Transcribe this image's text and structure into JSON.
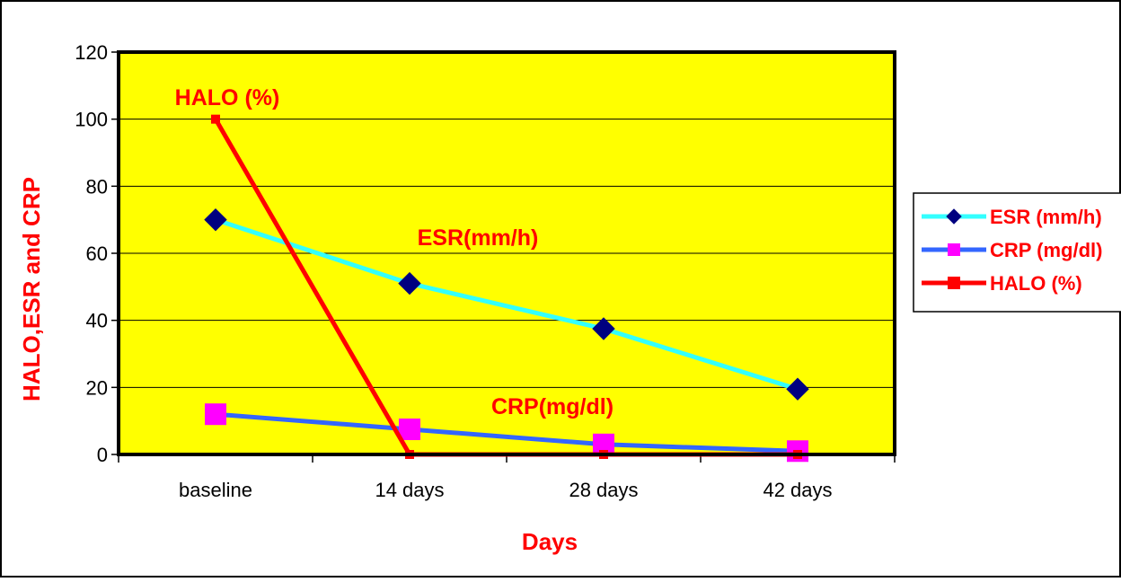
{
  "chart_data": {
    "type": "line",
    "title": "",
    "xlabel": "Days",
    "ylabel": "HALO,ESR and CRP",
    "categories": [
      "baseline",
      "14 days",
      "28 days",
      "42 days"
    ],
    "ylim": [
      0,
      120
    ],
    "yticks": [
      0,
      20,
      40,
      60,
      80,
      100,
      120
    ],
    "grid": true,
    "legend_position": "right",
    "plot_background": "#FFFF00",
    "series": [
      {
        "name": "ESR (mm/h)",
        "values": [
          70,
          51,
          37.5,
          19.5
        ],
        "line_color": "#33FFFF",
        "marker": "diamond",
        "marker_color": "#000080"
      },
      {
        "name": "CRP (mg/dl)",
        "values": [
          12,
          7.5,
          3,
          1
        ],
        "line_color": "#3366FF",
        "marker": "square",
        "marker_color": "#FF00FF"
      },
      {
        "name": "HALO (%)",
        "values": [
          100,
          0,
          0,
          0
        ],
        "line_color": "#FF0000",
        "marker": "square",
        "marker_color": "#FF0000"
      }
    ],
    "annotations": [
      {
        "text": "HALO (%)",
        "color": "#FF0000"
      },
      {
        "text": "ESR(mm/h)",
        "color": "#FF0000"
      },
      {
        "text": "CRP(mg/dl)",
        "color": "#FF0000"
      }
    ]
  }
}
